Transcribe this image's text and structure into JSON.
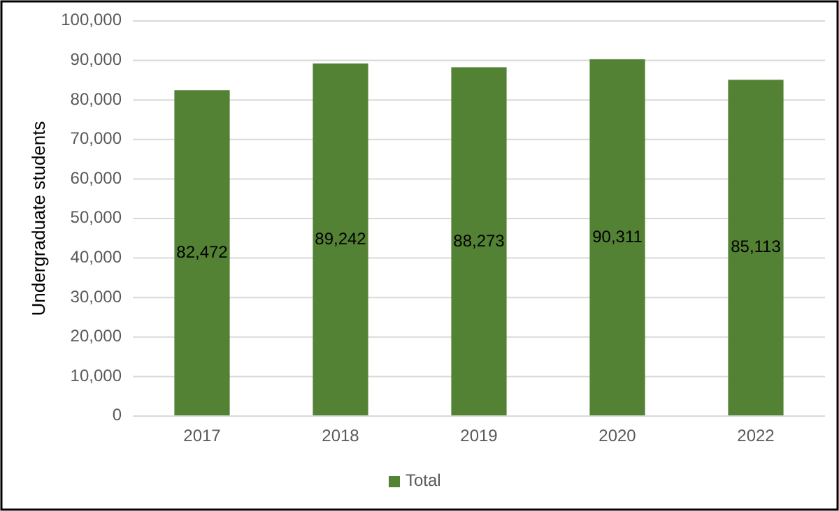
{
  "chart_data": {
    "type": "bar",
    "ylabel": "Undergraduate students",
    "categories": [
      "2017",
      "2018",
      "2019",
      "2020",
      "2022"
    ],
    "series": [
      {
        "name": "Total",
        "color": "#548235",
        "values": [
          82472,
          89242,
          88273,
          90311,
          85113
        ],
        "value_labels": [
          "82,472",
          "89,242",
          "88,273",
          "90,311",
          "85,113"
        ]
      }
    ],
    "ylim": [
      0,
      100000
    ],
    "yticks": [
      {
        "value": 0,
        "label": "0"
      },
      {
        "value": 10000,
        "label": "10,000"
      },
      {
        "value": 20000,
        "label": "20,000"
      },
      {
        "value": 30000,
        "label": "30,000"
      },
      {
        "value": 40000,
        "label": "40,000"
      },
      {
        "value": 50000,
        "label": "50,000"
      },
      {
        "value": 60000,
        "label": "60,000"
      },
      {
        "value": 70000,
        "label": "70,000"
      },
      {
        "value": 80000,
        "label": "80,000"
      },
      {
        "value": 90000,
        "label": "90,000"
      },
      {
        "value": 100000,
        "label": "100,000"
      }
    ],
    "grid": "y",
    "legend": "bottom"
  }
}
